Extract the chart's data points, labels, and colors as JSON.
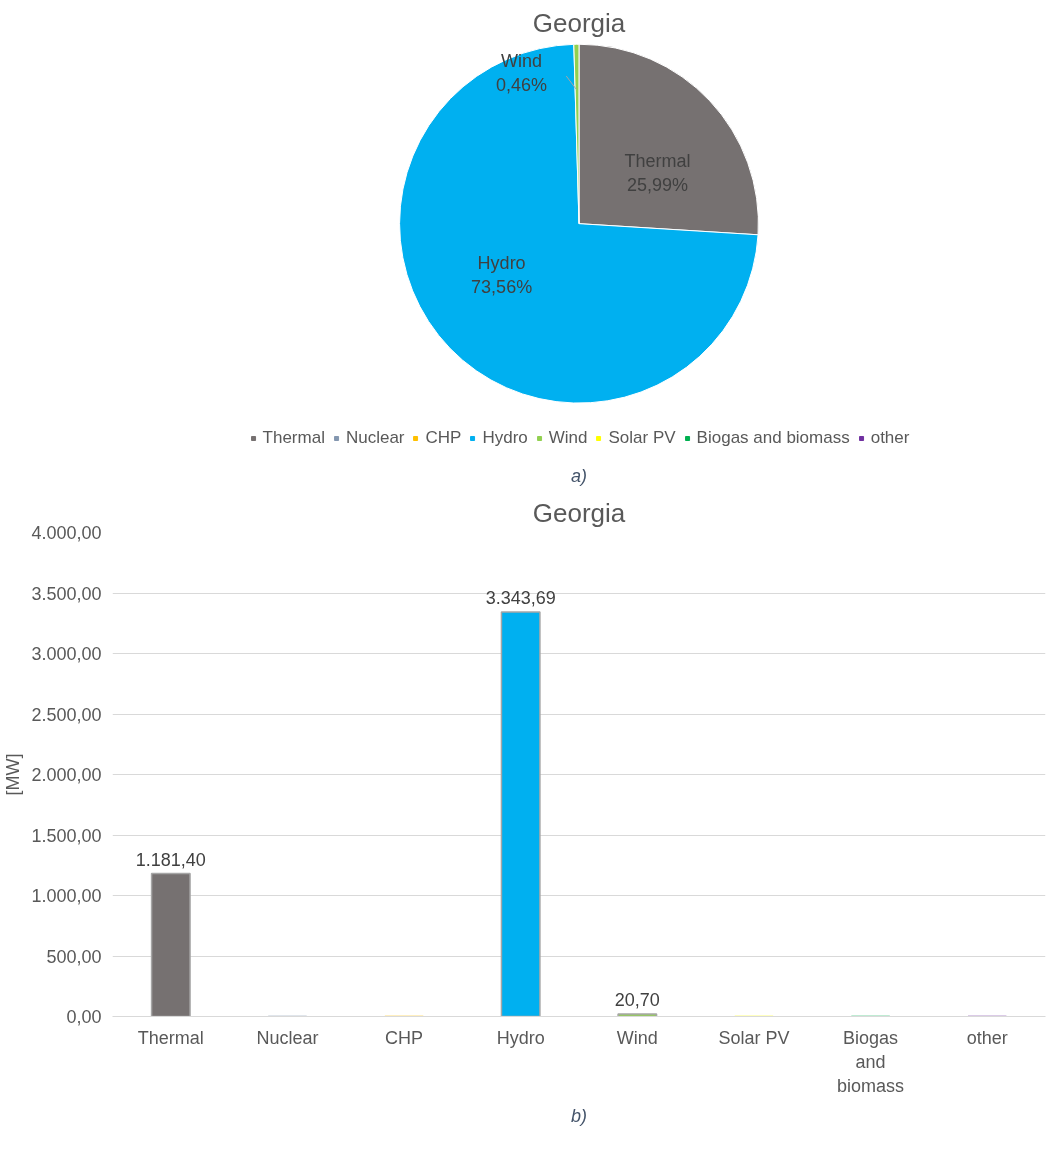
{
  "chart_data": [
    {
      "type": "pie",
      "title": "Georgia",
      "categories": [
        "Thermal",
        "Nuclear",
        "CHP",
        "Hydro",
        "Wind",
        "Solar PV",
        "Biogas and biomass",
        "other"
      ],
      "values": [
        25.99,
        0,
        0,
        73.56,
        0.46,
        0,
        0,
        0
      ],
      "value_labels": [
        "25,99%",
        null,
        null,
        "73,56%",
        "0,46%",
        null,
        null,
        null
      ],
      "colors": [
        "#767171",
        "#8497b0",
        "#ffc000",
        "#00b0f0",
        "#92d050",
        "#ffff00",
        "#00b050",
        "#7030a0"
      ],
      "legend": "bottom",
      "annotations": [
        "a)"
      ]
    },
    {
      "type": "bar",
      "title": "Georgia",
      "categories": [
        "Thermal",
        "Nuclear",
        "CHP",
        "Hydro",
        "Wind",
        "Solar PV",
        "Biogas and biomass",
        "other"
      ],
      "values": [
        1181.4,
        0,
        0,
        3343.69,
        20.7,
        0,
        0,
        0
      ],
      "value_labels": [
        "1.181,40",
        null,
        null,
        "3.343,69",
        "20,70",
        null,
        null,
        null
      ],
      "colors": [
        "#767171",
        "#8497b0",
        "#ffc000",
        "#00b0f0",
        "#92d050",
        "#ffff00",
        "#00b050",
        "#7030a0"
      ],
      "ylabel": "[MW]",
      "ylim": [
        0,
        4000
      ],
      "yticks": [
        {
          "value": 0,
          "label": "0,00"
        },
        {
          "value": 500,
          "label": "500,00"
        },
        {
          "value": 1000,
          "label": "1.000,00"
        },
        {
          "value": 1500,
          "label": "1.500,00"
        },
        {
          "value": 2000,
          "label": "2.000,00"
        },
        {
          "value": 2500,
          "label": "2.500,00"
        },
        {
          "value": 3000,
          "label": "3.000,00"
        },
        {
          "value": 3500,
          "label": "3.500,00"
        },
        {
          "value": 4000,
          "label": "4.000,00"
        }
      ],
      "grid": "y",
      "legend": false,
      "annotations": [
        "b)"
      ]
    }
  ]
}
